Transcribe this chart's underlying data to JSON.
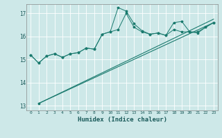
{
  "xlabel": "Humidex (Indice chaleur)",
  "x_values": [
    0,
    1,
    2,
    3,
    4,
    5,
    6,
    7,
    8,
    9,
    10,
    11,
    12,
    13,
    14,
    15,
    16,
    17,
    18,
    19,
    20,
    21,
    22,
    23
  ],
  "line1_y": [
    15.2,
    14.85,
    15.15,
    15.25,
    15.1,
    15.25,
    15.3,
    15.5,
    15.45,
    16.1,
    16.2,
    16.3,
    17.0,
    16.4,
    16.2,
    16.1,
    16.15,
    16.05,
    16.3,
    16.2,
    16.2,
    16.15,
    16.4,
    16.6
  ],
  "line2_y": [
    15.2,
    14.85,
    15.15,
    15.25,
    15.1,
    15.25,
    15.3,
    15.5,
    15.45,
    16.1,
    16.2,
    17.25,
    17.1,
    16.55,
    16.25,
    16.1,
    16.15,
    16.05,
    16.6,
    16.65,
    16.2,
    16.2,
    16.4,
    16.6
  ],
  "line3_x": [
    1,
    23
  ],
  "line3_y": [
    13.1,
    16.6
  ],
  "line4_x": [
    1,
    23
  ],
  "line4_y": [
    13.1,
    16.75
  ],
  "marker_straight_x": 1,
  "marker_straight_y": 13.1,
  "ylim": [
    12.8,
    17.4
  ],
  "xlim": [
    -0.5,
    23.5
  ],
  "yticks": [
    13,
    14,
    15,
    16,
    17
  ],
  "xticks": [
    0,
    1,
    2,
    3,
    4,
    5,
    6,
    7,
    8,
    9,
    10,
    11,
    12,
    13,
    14,
    15,
    16,
    17,
    18,
    19,
    20,
    21,
    22,
    23
  ],
  "bg_color": "#cde8e8",
  "grid_color": "#ffffff",
  "line_color": "#1a7a6e",
  "marker": "*",
  "figsize": [
    3.2,
    2.0
  ],
  "dpi": 100
}
